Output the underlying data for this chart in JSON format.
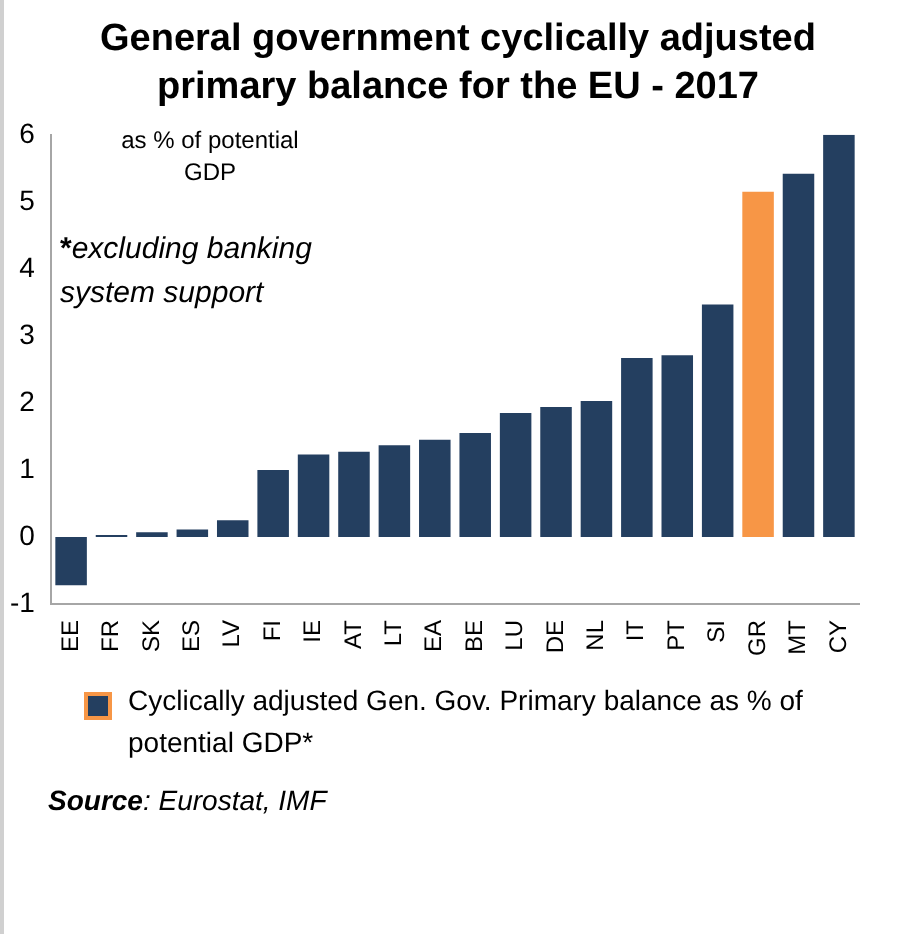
{
  "chart_data": {
    "type": "bar",
    "title": "General government cyclically adjusted primary balance for the EU - 2017",
    "categories": [
      "EE",
      "FR",
      "SK",
      "ES",
      "LV",
      "FI",
      "IE",
      "AT",
      "LT",
      "EA",
      "BE",
      "LU",
      "DE",
      "NL",
      "IT",
      "PT",
      "SI",
      "GR",
      "MT",
      "CY"
    ],
    "series": [
      {
        "name": "Cyclically adjusted Gen. Gov. Primary balance as % of potential GDP*",
        "color": "#243f60",
        "values": [
          -0.72,
          0.03,
          0.07,
          0.11,
          0.25,
          1.0,
          1.23,
          1.27,
          1.37,
          1.45,
          1.55,
          1.85,
          1.94,
          2.03,
          2.67,
          2.71,
          3.47,
          5.15,
          5.42,
          6.0
        ],
        "colors": [
          "#243f60",
          "#243f60",
          "#243f60",
          "#243f60",
          "#243f60",
          "#243f60",
          "#243f60",
          "#243f60",
          "#243f60",
          "#243f60",
          "#243f60",
          "#243f60",
          "#243f60",
          "#243f60",
          "#243f60",
          "#243f60",
          "#243f60",
          "#f79646",
          "#243f60",
          "#243f60"
        ]
      }
    ],
    "ylim": [
      -1,
      6
    ],
    "yticks": [
      -1,
      0,
      1,
      2,
      3,
      4,
      5,
      6
    ],
    "grid": false,
    "legend": "bottom",
    "annotations": [
      "as % of potential GDP",
      "*excluding banking system support",
      "Source: Eurostat, IMF"
    ]
  }
}
